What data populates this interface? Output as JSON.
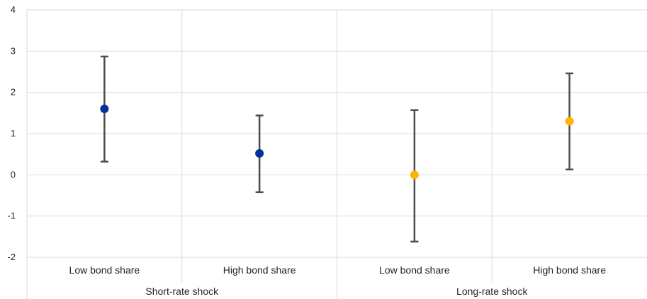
{
  "chart_data": {
    "type": "scatter",
    "title": "",
    "xlabel": "",
    "ylabel": "",
    "ylim": [
      -2,
      4
    ],
    "yticks": [
      4,
      3,
      2,
      1,
      0,
      -1,
      -2
    ],
    "grid": true,
    "legend": "none",
    "groups": [
      {
        "label": "Short-rate shock",
        "color": "#003299",
        "points": [
          {
            "label": "Low bond share",
            "value": 1.6,
            "low": 0.32,
            "high": 2.87
          },
          {
            "label": "High bond share",
            "value": 0.52,
            "low": -0.42,
            "high": 1.44
          }
        ]
      },
      {
        "label": "Long-rate shock",
        "color": "#ffb400",
        "points": [
          {
            "label": "Low bond share",
            "value": 0.0,
            "low": -1.62,
            "high": 1.57
          },
          {
            "label": "High bond share",
            "value": 1.3,
            "low": 0.13,
            "high": 2.46
          }
        ]
      }
    ],
    "error_bar_color": "#4d4d4d",
    "grid_color": "#d9d9d9"
  }
}
